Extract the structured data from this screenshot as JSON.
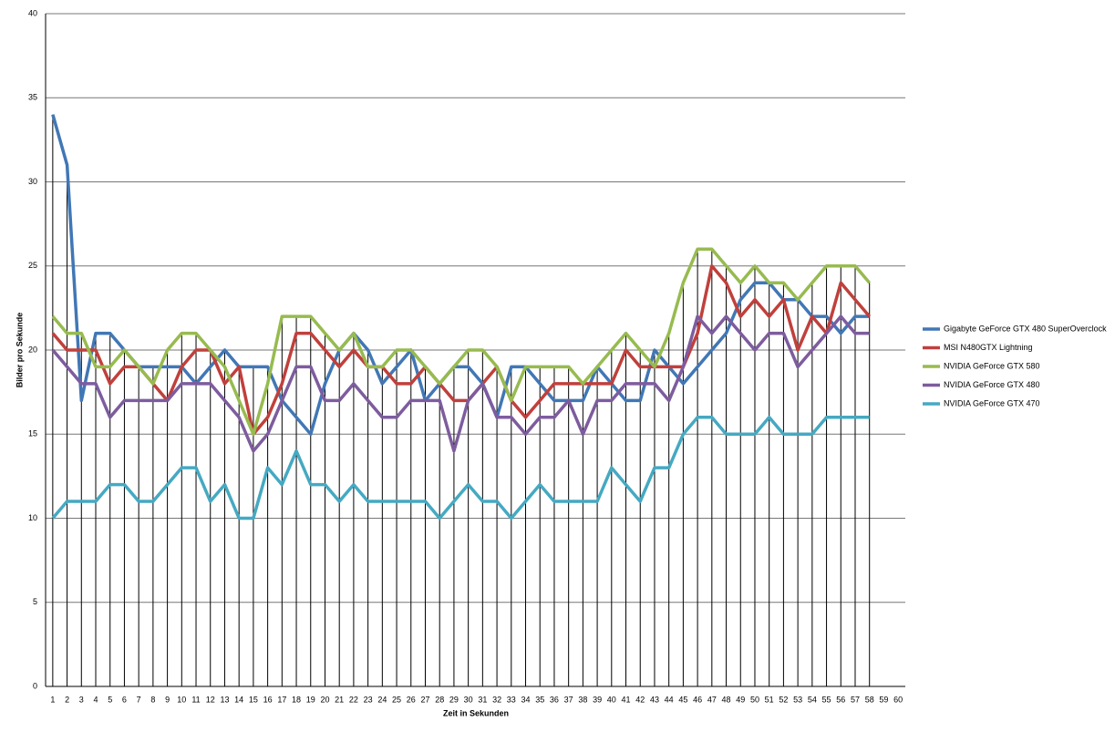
{
  "chart_data": {
    "type": "line",
    "x_label": "Zeit in Sekunden",
    "y_label": "Bilder pro Sekunde",
    "categories": [
      1,
      2,
      3,
      4,
      5,
      6,
      7,
      8,
      9,
      10,
      11,
      12,
      13,
      14,
      15,
      16,
      17,
      18,
      19,
      20,
      21,
      22,
      23,
      24,
      25,
      26,
      27,
      28,
      29,
      30,
      31,
      32,
      33,
      34,
      35,
      36,
      37,
      38,
      39,
      40,
      41,
      42,
      43,
      44,
      45,
      46,
      47,
      48,
      49,
      50,
      51,
      52,
      53,
      54,
      55,
      56,
      57,
      58,
      59,
      60
    ],
    "ylim": [
      0,
      40
    ],
    "yticks": [
      0,
      5,
      10,
      15,
      20,
      25,
      30,
      35,
      40
    ],
    "grid": true,
    "legend": "right",
    "series": [
      {
        "name": "Gigabyte GeForce GTX 480 SuperOverclock",
        "color": "#4177b5",
        "values": [
          34,
          31,
          17,
          21,
          21,
          20,
          19,
          19,
          19,
          19,
          18,
          19,
          20,
          19,
          19,
          19,
          17,
          16,
          15,
          18,
          20,
          21,
          20,
          18,
          19,
          20,
          17,
          18,
          19,
          19,
          18,
          16,
          19,
          19,
          18,
          17,
          17,
          17,
          19,
          18,
          17,
          17,
          20,
          19,
          18,
          19,
          20,
          21,
          23,
          24,
          24,
          23,
          23,
          22,
          22,
          21,
          22,
          22,
          null,
          null
        ]
      },
      {
        "name": "MSI N480GTX Lightning",
        "color": "#c0403c",
        "values": [
          21,
          20,
          20,
          20,
          18,
          19,
          19,
          18,
          17,
          19,
          20,
          20,
          18,
          19,
          15,
          16,
          18,
          21,
          21,
          20,
          19,
          20,
          19,
          19,
          18,
          18,
          19,
          18,
          17,
          17,
          18,
          19,
          17,
          16,
          17,
          18,
          18,
          18,
          18,
          18,
          20,
          19,
          19,
          19,
          19,
          21,
          25,
          24,
          22,
          23,
          22,
          23,
          20,
          22,
          21,
          24,
          23,
          22,
          null,
          null
        ]
      },
      {
        "name": "NVIDIA GeForce GTX 580",
        "color": "#97bb4f",
        "values": [
          22,
          21,
          21,
          19,
          19,
          20,
          19,
          18,
          20,
          21,
          21,
          20,
          19,
          17,
          15,
          18,
          22,
          22,
          22,
          21,
          20,
          21,
          19,
          19,
          20,
          20,
          19,
          18,
          19,
          20,
          20,
          19,
          17,
          19,
          19,
          19,
          19,
          18,
          19,
          20,
          21,
          20,
          19,
          21,
          24,
          26,
          26,
          25,
          24,
          25,
          24,
          24,
          23,
          24,
          25,
          25,
          25,
          24,
          null,
          null
        ]
      },
      {
        "name": "NVIDIA GeForce GTX 480",
        "color": "#7d5c9e",
        "values": [
          20,
          19,
          18,
          18,
          16,
          17,
          17,
          17,
          17,
          18,
          18,
          18,
          17,
          16,
          14,
          15,
          17,
          19,
          19,
          17,
          17,
          18,
          17,
          16,
          16,
          17,
          17,
          17,
          14,
          17,
          18,
          16,
          16,
          15,
          16,
          16,
          17,
          15,
          17,
          17,
          18,
          18,
          18,
          17,
          19,
          22,
          21,
          22,
          21,
          20,
          21,
          21,
          19,
          20,
          21,
          22,
          21,
          21,
          null,
          null
        ]
      },
      {
        "name": "NVIDIA GeForce GTX 470",
        "color": "#45a9c2",
        "values": [
          10,
          11,
          11,
          11,
          12,
          12,
          11,
          11,
          12,
          13,
          13,
          11,
          12,
          10,
          10,
          13,
          12,
          14,
          12,
          12,
          11,
          12,
          11,
          11,
          11,
          11,
          11,
          10,
          11,
          12,
          11,
          11,
          10,
          11,
          12,
          11,
          11,
          11,
          11,
          13,
          12,
          11,
          13,
          13,
          15,
          16,
          16,
          15,
          15,
          15,
          16,
          15,
          15,
          15,
          16,
          16,
          16,
          16,
          null,
          null
        ]
      }
    ]
  }
}
